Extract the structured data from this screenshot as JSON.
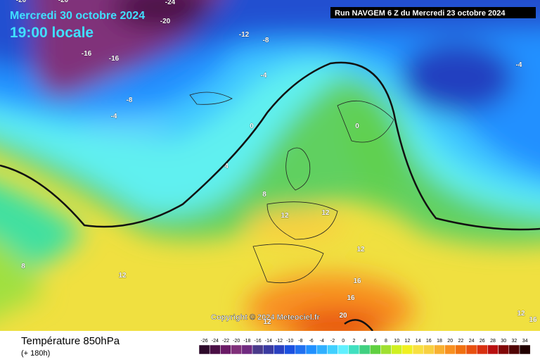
{
  "header": {
    "date": "Mercredi 30 octobre 2024",
    "time": "19:00 locale",
    "run": "Run NAVGEM 6 Z du Mercredi 23 octobre 2024"
  },
  "copyright": "Copyright © 2024 Meteociel.fr",
  "footer": {
    "title": "Température 850hPa",
    "lead": "(+ 180h)"
  },
  "legend": {
    "labels": [
      -26,
      -24,
      -22,
      -20,
      -18,
      -16,
      -14,
      -12,
      -10,
      -8,
      -6,
      -4,
      -2,
      0,
      2,
      4,
      6,
      8,
      10,
      12,
      14,
      16,
      18,
      20,
      22,
      24,
      26,
      28,
      30,
      32,
      34
    ],
    "colors": [
      "#2d0a2a",
      "#4a0f45",
      "#6a1a66",
      "#80307a",
      "#702a80",
      "#4a3a8a",
      "#3a3aa0",
      "#2a40c0",
      "#1a50e0",
      "#2070f0",
      "#2090ff",
      "#30b0ff",
      "#40d0ff",
      "#60f0ff",
      "#40e0c0",
      "#40d080",
      "#60d040",
      "#a0e030",
      "#d0f020",
      "#f0f020",
      "#f8e040",
      "#f8d040",
      "#f8b030",
      "#f89020",
      "#f07010",
      "#e85010",
      "#d83010",
      "#b81010",
      "#800808",
      "#500404",
      "#200000"
    ]
  },
  "contour_labels": [
    -20,
    -20,
    -24,
    -20,
    -12,
    -8,
    -16,
    -16,
    -4,
    -8,
    -4,
    0,
    0,
    -4,
    4,
    8,
    12,
    12,
    12,
    8,
    12,
    16,
    16,
    20,
    12,
    16,
    12
  ]
}
